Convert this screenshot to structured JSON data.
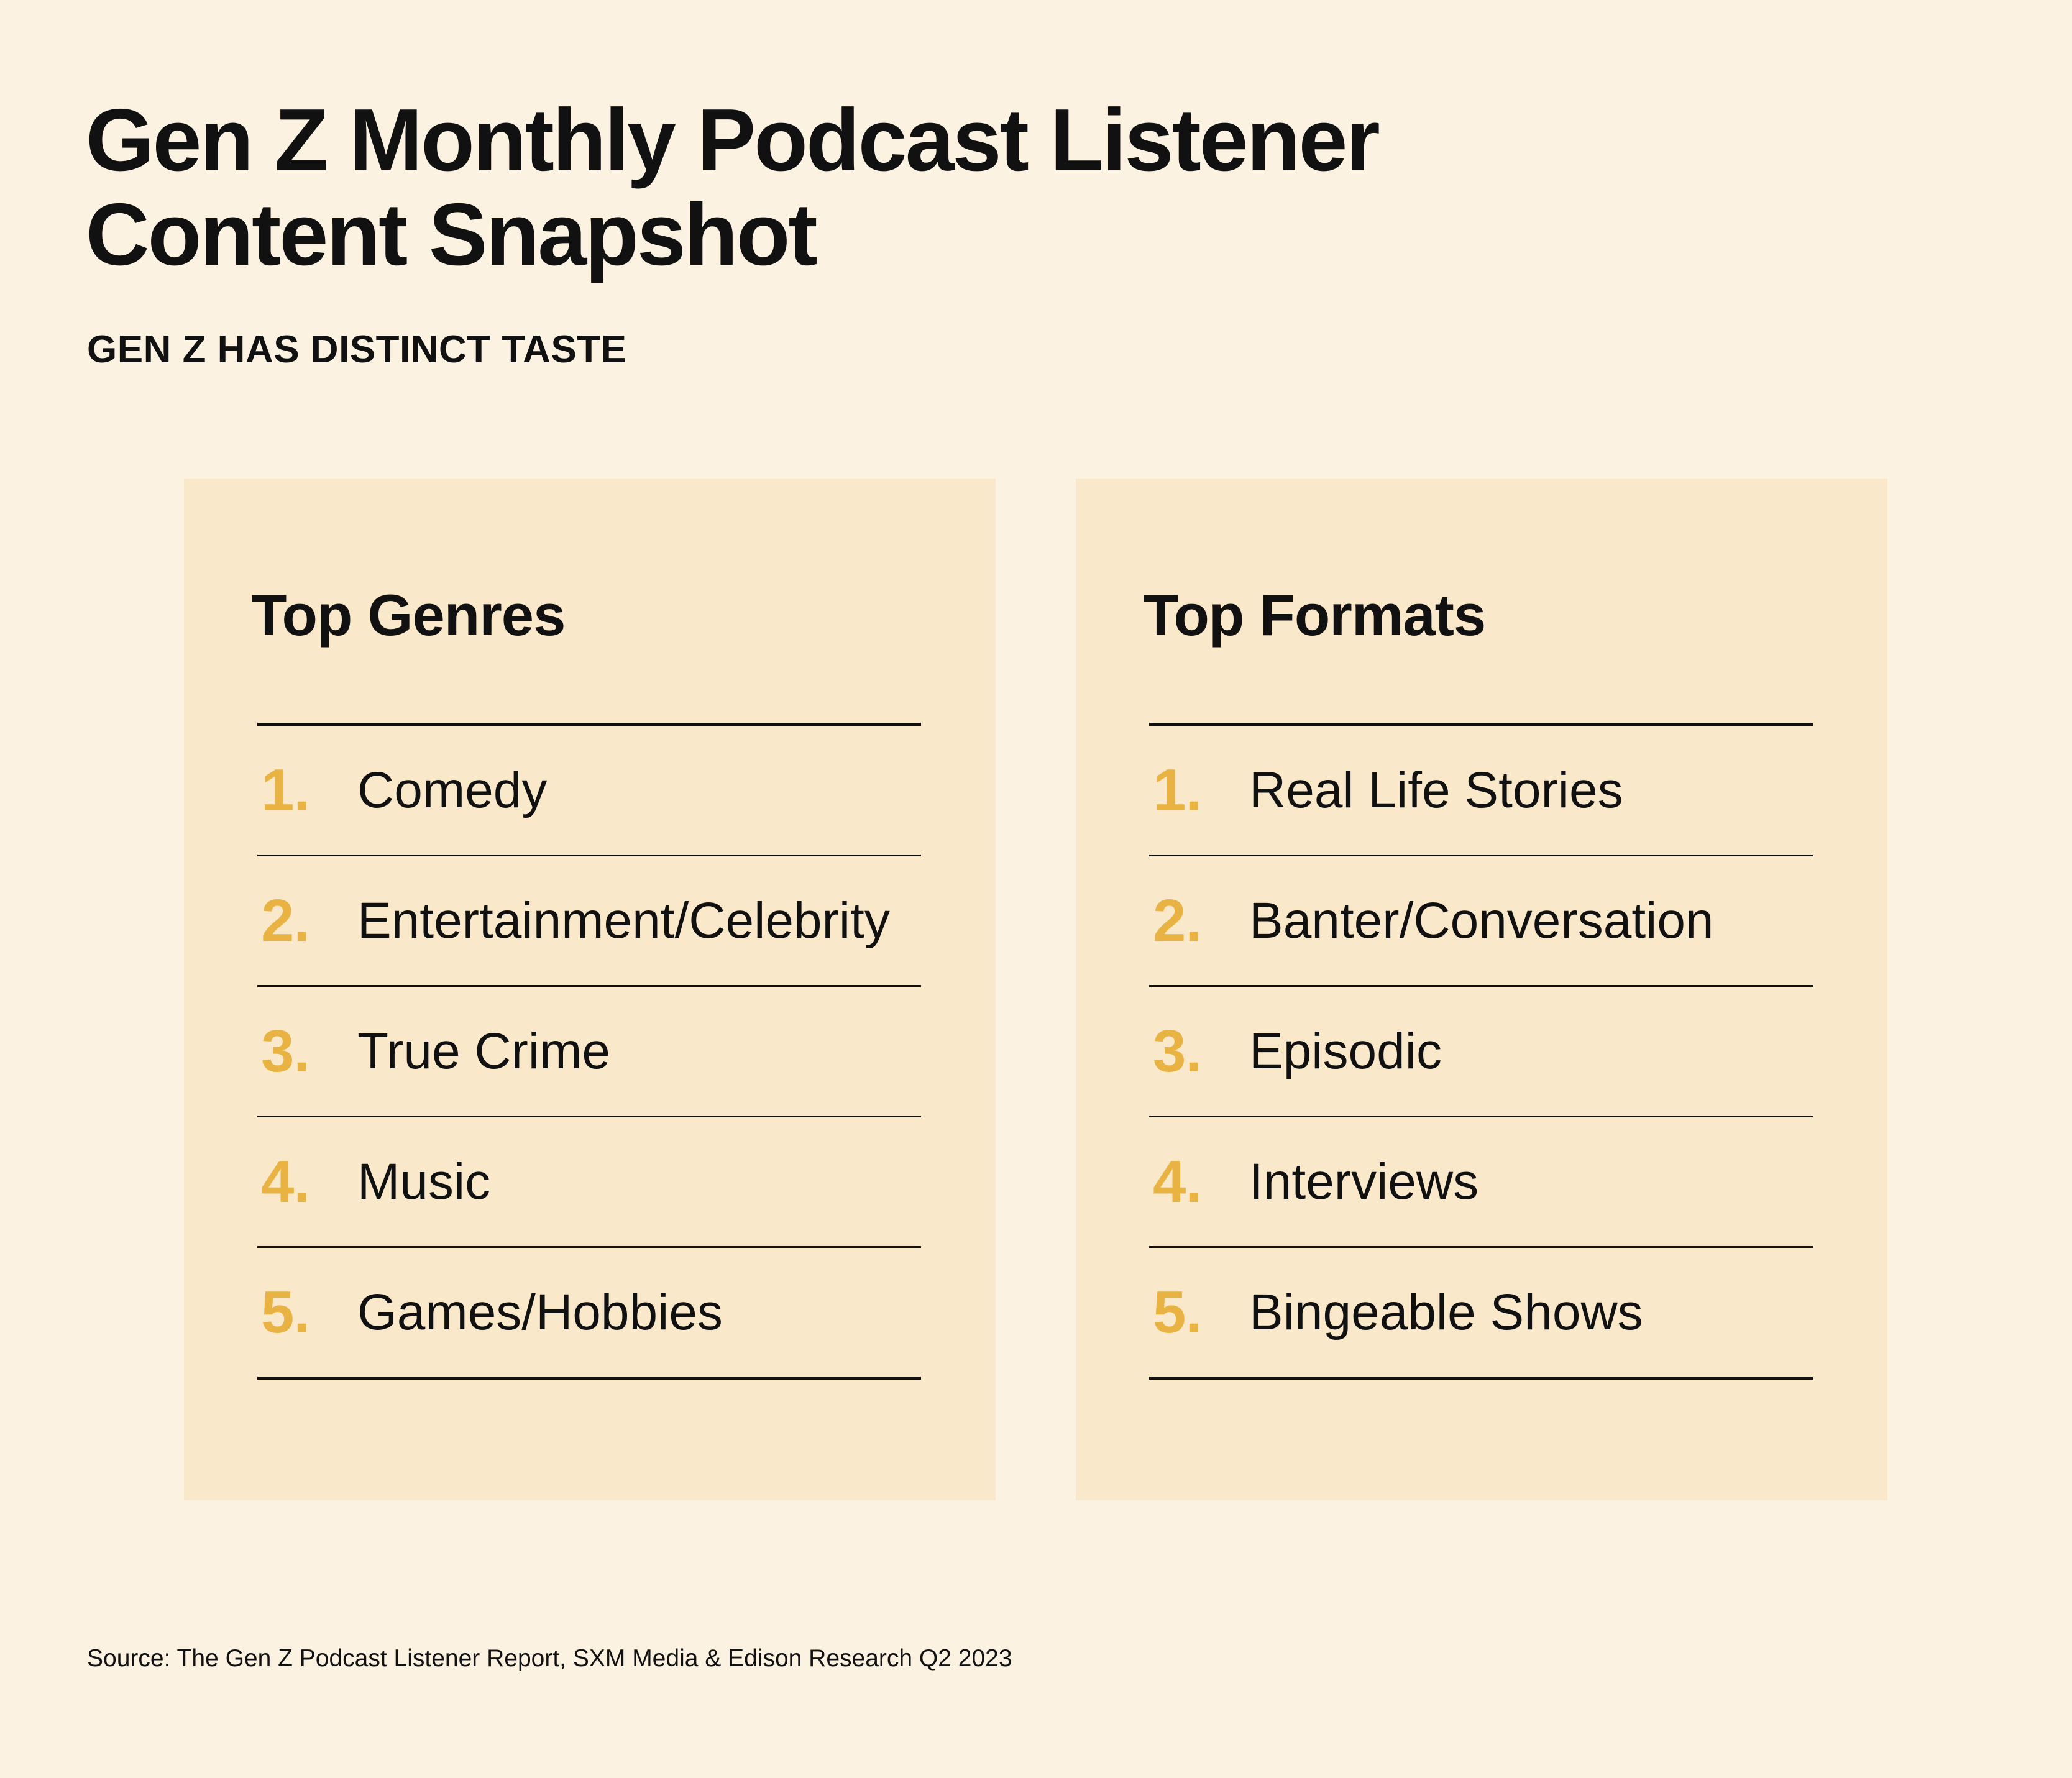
{
  "header": {
    "title_line1": "Gen Z Monthly Podcast Listener",
    "title_line2": "Content Snapshot",
    "subtitle": "GEN Z HAS DISTINCT TASTE"
  },
  "colors": {
    "background": "#fbf2e2",
    "panel": "#f9e8c9",
    "rank_number": "#e8b342",
    "text": "#111111"
  },
  "genres": {
    "title": "Top Genres",
    "items": [
      {
        "rank": "1.",
        "label": "Comedy"
      },
      {
        "rank": "2.",
        "label": "Entertainment/Celebrity"
      },
      {
        "rank": "3.",
        "label": "True Crime"
      },
      {
        "rank": "4.",
        "label": "Music"
      },
      {
        "rank": "5.",
        "label": "Games/Hobbies"
      }
    ]
  },
  "formats": {
    "title": "Top Formats",
    "items": [
      {
        "rank": "1.",
        "label": "Real Life Stories"
      },
      {
        "rank": "2.",
        "label": "Banter/Conversation"
      },
      {
        "rank": "3.",
        "label": "Episodic"
      },
      {
        "rank": "4.",
        "label": "Interviews"
      },
      {
        "rank": "5.",
        "label": "Bingeable Shows"
      }
    ]
  },
  "footer": {
    "source": "Source: The Gen Z Podcast Listener Report, SXM Media & Edison Research Q2 2023"
  }
}
